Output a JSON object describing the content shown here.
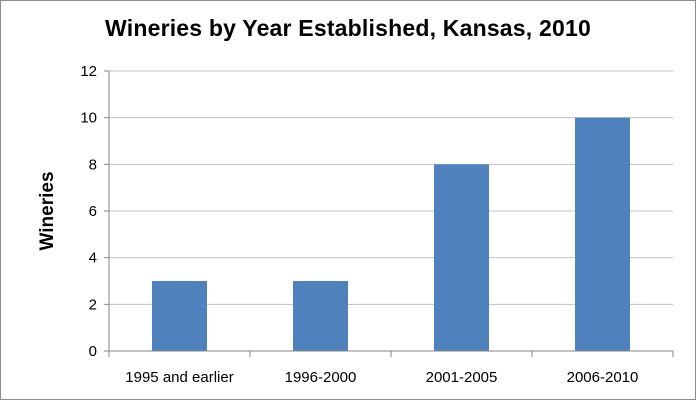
{
  "chart_data": {
    "type": "bar",
    "title": "Wineries by Year Established,  Kansas, 2010",
    "xlabel": "",
    "ylabel": "Wineries",
    "categories": [
      "1995 and earlier",
      "1996-2000",
      "2001-2005",
      "2006-2010"
    ],
    "series": [
      {
        "values": [
          3,
          3,
          8,
          10
        ]
      }
    ],
    "ylim": [
      0,
      12
    ],
    "yticks": [
      0,
      2,
      4,
      6,
      8,
      10,
      12
    ],
    "grid": true,
    "legend": "none",
    "bar_color": "#4f81bd",
    "gridline_color": "#c0c0c0",
    "axis_color": "#868686"
  }
}
